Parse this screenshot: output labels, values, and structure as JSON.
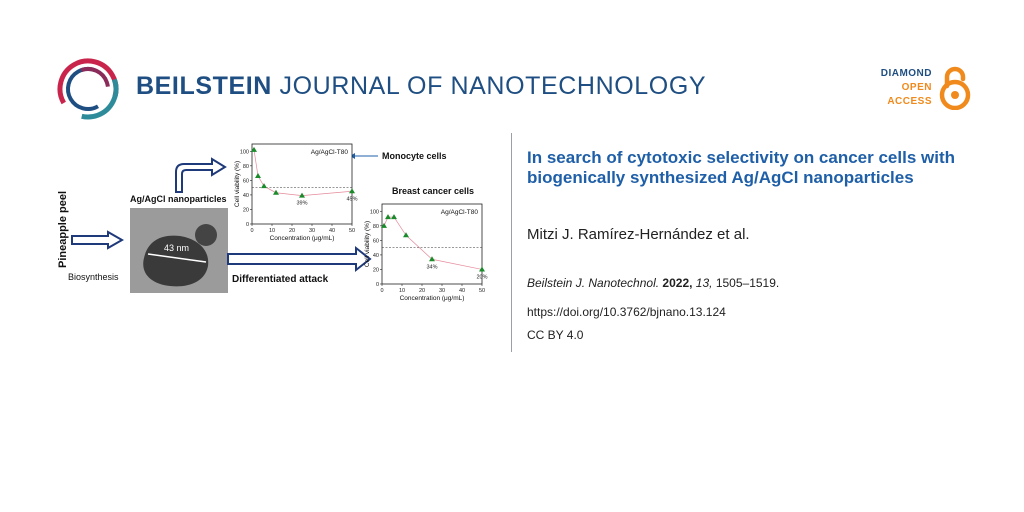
{
  "header": {
    "journal_bold": "BEILSTEIN",
    "journal_rest": "JOURNAL OF NANOTECHNOLOGY",
    "badge": {
      "line1": "DIAMOND",
      "line2": "OPEN",
      "line3": "ACCESS"
    },
    "colors": {
      "brand_blue": "#1f4f82",
      "accent_orange": "#f08a1c",
      "ring_red": "#c9244b",
      "ring_teal": "#2e8c9a"
    }
  },
  "article": {
    "title": "In search of cytotoxic selectivity on cancer cells with biogenically synthesized Ag/AgCl nanoparticles",
    "authors": "Mitzi J. Ramírez-Hernández et al.",
    "citation": {
      "journal": "Beilstein J. Nanotechnol.",
      "year": "2022,",
      "volume": "13,",
      "pages": "1505–1519."
    },
    "doi": "https://doi.org/10.3762/bjnano.13.124",
    "license": "CC BY 4.0"
  },
  "graphic": {
    "pineapple_label": "Pineapple peel",
    "biosynthesis_label": "Biosynthesis",
    "nanoparticles_label": "Ag/AgCl nanoparticles",
    "particle_size_label": "43 nm",
    "monocyte_label": "Monocyte cells",
    "breast_label": "Breast cancer cells",
    "attack_label": "Differentiated attack",
    "icon": "arrow-right-icon"
  },
  "chart_data": [
    {
      "type": "scatter",
      "title": "Monocyte cells",
      "legend": "Ag/AgCl-T80",
      "xlabel": "Concentration (μg/mL)",
      "ylabel": "Cell viability (%)",
      "xlim": [
        0,
        50
      ],
      "ylim": [
        0,
        110
      ],
      "xticks": [
        0,
        10,
        20,
        30,
        40,
        50
      ],
      "yticks": [
        0,
        20,
        40,
        60,
        80,
        100
      ],
      "threshold": 50,
      "x": [
        1,
        3,
        6,
        12,
        25,
        50
      ],
      "y": [
        102,
        66,
        52,
        43,
        39,
        45
      ],
      "annotations": [
        {
          "x": 25,
          "y": 39,
          "text": "39%"
        },
        {
          "x": 50,
          "y": 45,
          "text": "45%"
        }
      ]
    },
    {
      "type": "scatter",
      "title": "Breast cancer cells",
      "legend": "Ag/AgCl-T80",
      "xlabel": "Concentration (μg/mL)",
      "ylabel": "Cell viability (%)",
      "xlim": [
        0,
        50
      ],
      "ylim": [
        0,
        110
      ],
      "xticks": [
        0,
        10,
        20,
        30,
        40,
        50
      ],
      "yticks": [
        0,
        20,
        40,
        60,
        80,
        100
      ],
      "threshold": 50,
      "x": [
        1,
        3,
        6,
        12,
        25,
        50
      ],
      "y": [
        80,
        92,
        92,
        67,
        34,
        20
      ],
      "annotations": [
        {
          "x": 25,
          "y": 34,
          "text": "34%"
        },
        {
          "x": 50,
          "y": 20,
          "text": "20%"
        }
      ]
    }
  ]
}
